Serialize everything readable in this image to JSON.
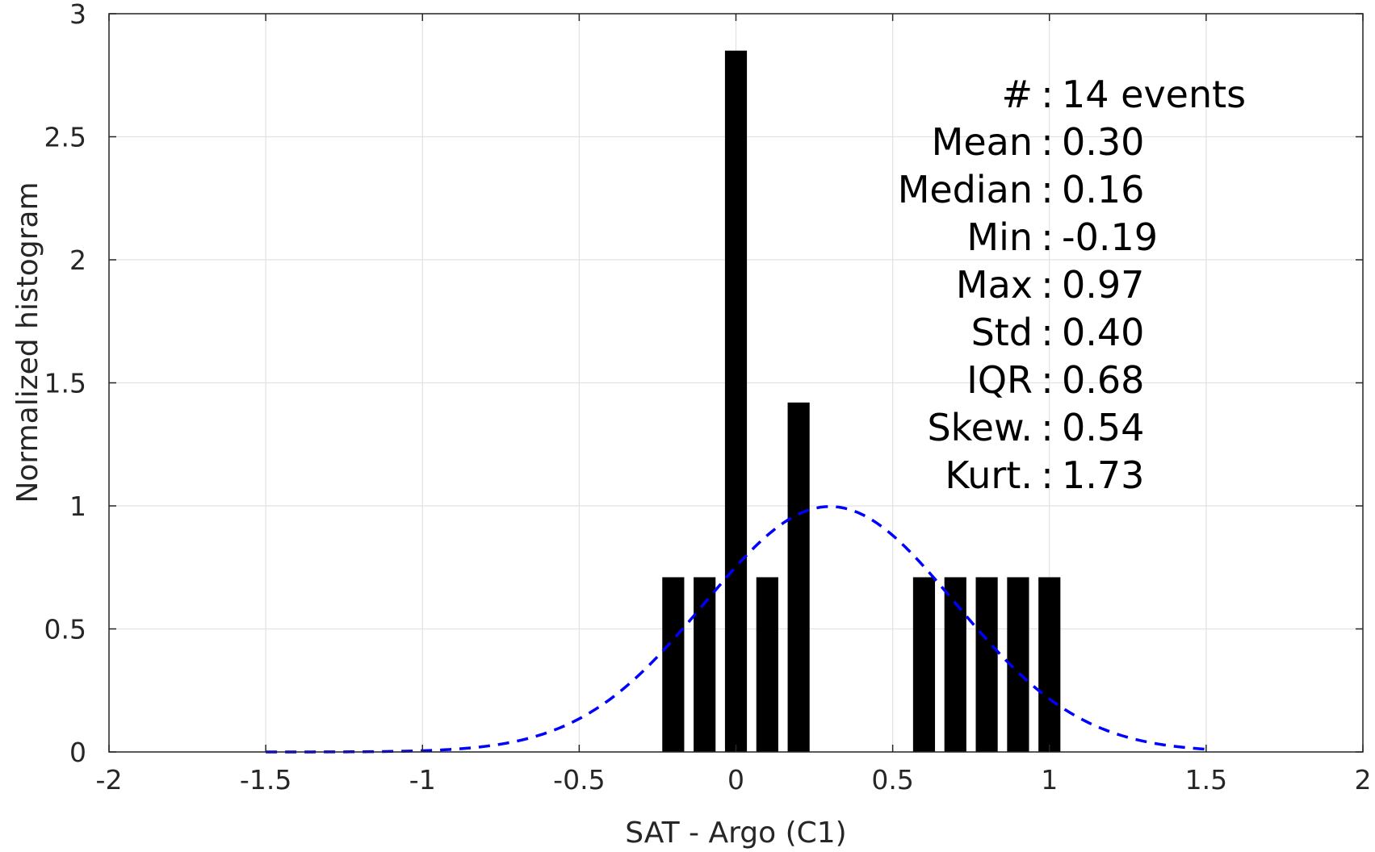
{
  "chart_data": {
    "type": "bar",
    "xlabel": "SAT - Argo (C1)",
    "ylabel": "Normalized histogram",
    "xlim": [
      -2,
      2
    ],
    "ylim": [
      0,
      3
    ],
    "x_ticks": [
      -2,
      -1.5,
      -1,
      -0.5,
      0,
      0.5,
      1,
      1.5,
      2
    ],
    "x_tick_labels": [
      "-2",
      "-1.5",
      "-1",
      "-0.5",
      "0",
      "0.5",
      "1",
      "1.5",
      "2"
    ],
    "y_ticks": [
      0,
      0.5,
      1,
      1.5,
      2,
      2.5,
      3
    ],
    "y_tick_labels": [
      "0",
      "0.5",
      "1",
      "1.5",
      "2",
      "2.5",
      "3"
    ],
    "grid": true,
    "bar_width": 0.07,
    "bars": [
      {
        "x": -0.2,
        "y": 0.71
      },
      {
        "x": -0.1,
        "y": 0.71
      },
      {
        "x": 0.0,
        "y": 2.85
      },
      {
        "x": 0.1,
        "y": 0.71
      },
      {
        "x": 0.2,
        "y": 1.42
      },
      {
        "x": 0.6,
        "y": 0.71
      },
      {
        "x": 0.7,
        "y": 0.71
      },
      {
        "x": 0.8,
        "y": 0.71
      },
      {
        "x": 0.9,
        "y": 0.71
      },
      {
        "x": 1.0,
        "y": 0.71
      }
    ],
    "bar_color": "#000000",
    "fit_curve": {
      "style": "dashed",
      "color": "#0000ff",
      "mean": 0.3,
      "std": 0.4,
      "x_range": [
        -1.5,
        1.5
      ]
    },
    "stats": {
      "lines": [
        {
          "label": "#  ",
          "value": "14 events"
        },
        {
          "label": "Mean",
          "value": "0.30"
        },
        {
          "label": "Median",
          "value": "0.16"
        },
        {
          "label": "Min",
          "value": "-0.19"
        },
        {
          "label": "Max",
          "value": "0.97"
        },
        {
          "label": "Std",
          "value": "0.40"
        },
        {
          "label": "IQR",
          "value": "0.68"
        },
        {
          "label": "Skew.",
          "value": "0.54"
        },
        {
          "label": "Kurt.",
          "value": "1.73"
        }
      ]
    }
  }
}
